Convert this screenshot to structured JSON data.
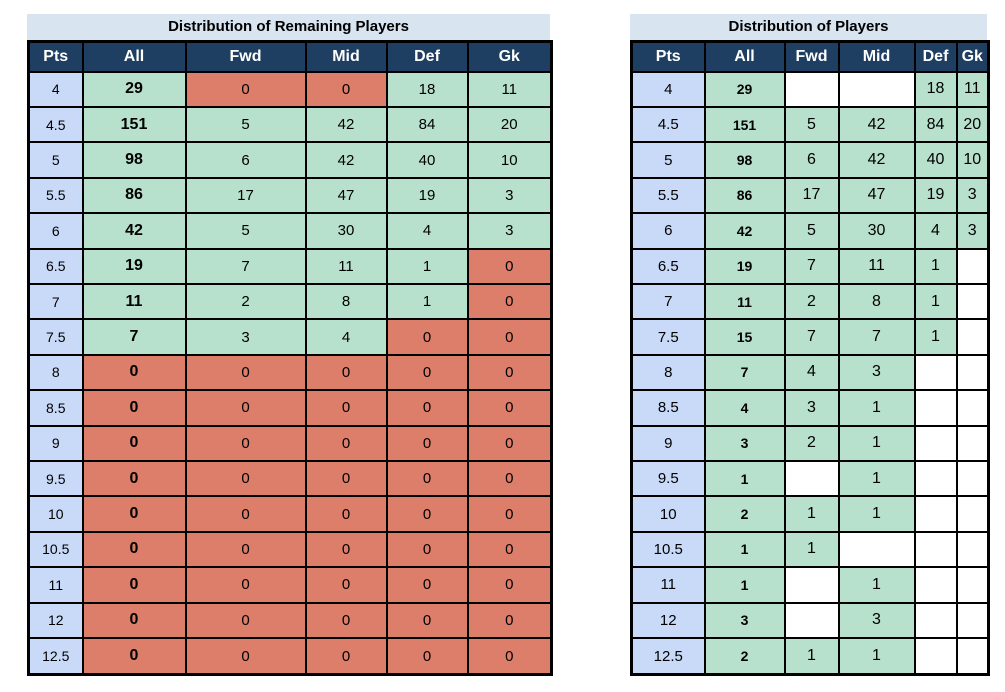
{
  "colors": {
    "title_bg": "#d8e4f0",
    "header_bg": "#1e3f61",
    "header_text": "#ffffff",
    "pts_column_bg": "#c9daf8",
    "positive_cell_bg": "#b7e1cd",
    "zero_cell_bg": "#dd7e6b",
    "blank_cell_bg": "#ffffff",
    "border": "#000000"
  },
  "chart_data": [
    {
      "type": "table",
      "title": "Distribution of Remaining Players",
      "columns": [
        "Pts",
        "All",
        "Fwd",
        "Mid",
        "Def",
        "Gk"
      ],
      "rows": [
        [
          "4",
          "29",
          "0",
          "0",
          "18",
          "11"
        ],
        [
          "4.5",
          "151",
          "5",
          "42",
          "84",
          "20"
        ],
        [
          "5",
          "98",
          "6",
          "42",
          "40",
          "10"
        ],
        [
          "5.5",
          "86",
          "17",
          "47",
          "19",
          "3"
        ],
        [
          "6",
          "42",
          "5",
          "30",
          "4",
          "3"
        ],
        [
          "6.5",
          "19",
          "7",
          "11",
          "1",
          "0"
        ],
        [
          "7",
          "11",
          "2",
          "8",
          "1",
          "0"
        ],
        [
          "7.5",
          "7",
          "3",
          "4",
          "0",
          "0"
        ],
        [
          "8",
          "0",
          "0",
          "0",
          "0",
          "0"
        ],
        [
          "8.5",
          "0",
          "0",
          "0",
          "0",
          "0"
        ],
        [
          "9",
          "0",
          "0",
          "0",
          "0",
          "0"
        ],
        [
          "9.5",
          "0",
          "0",
          "0",
          "0",
          "0"
        ],
        [
          "10",
          "0",
          "0",
          "0",
          "0",
          "0"
        ],
        [
          "10.5",
          "0",
          "0",
          "0",
          "0",
          "0"
        ],
        [
          "11",
          "0",
          "0",
          "0",
          "0",
          "0"
        ],
        [
          "12",
          "0",
          "0",
          "0",
          "0",
          "0"
        ],
        [
          "12.5",
          "0",
          "0",
          "0",
          "0",
          "0"
        ]
      ]
    },
    {
      "type": "table",
      "title": "Distribution of Players",
      "columns": [
        "Pts",
        "All",
        "Fwd",
        "Mid",
        "Def",
        "Gk"
      ],
      "rows": [
        [
          "4",
          "29",
          "",
          "",
          "18",
          "11"
        ],
        [
          "4.5",
          "151",
          "5",
          "42",
          "84",
          "20"
        ],
        [
          "5",
          "98",
          "6",
          "42",
          "40",
          "10"
        ],
        [
          "5.5",
          "86",
          "17",
          "47",
          "19",
          "3"
        ],
        [
          "6",
          "42",
          "5",
          "30",
          "4",
          "3"
        ],
        [
          "6.5",
          "19",
          "7",
          "11",
          "1",
          ""
        ],
        [
          "7",
          "11",
          "2",
          "8",
          "1",
          ""
        ],
        [
          "7.5",
          "15",
          "7",
          "7",
          "1",
          ""
        ],
        [
          "8",
          "7",
          "4",
          "3",
          "",
          ""
        ],
        [
          "8.5",
          "4",
          "3",
          "1",
          "",
          ""
        ],
        [
          "9",
          "3",
          "2",
          "1",
          "",
          ""
        ],
        [
          "9.5",
          "1",
          "",
          "1",
          "",
          ""
        ],
        [
          "10",
          "2",
          "1",
          "1",
          "",
          ""
        ],
        [
          "10.5",
          "1",
          "1",
          "",
          "",
          ""
        ],
        [
          "11",
          "1",
          "",
          "1",
          "",
          ""
        ],
        [
          "12",
          "3",
          "",
          "3",
          "",
          ""
        ],
        [
          "12.5",
          "2",
          "1",
          "1",
          "",
          ""
        ]
      ]
    }
  ]
}
